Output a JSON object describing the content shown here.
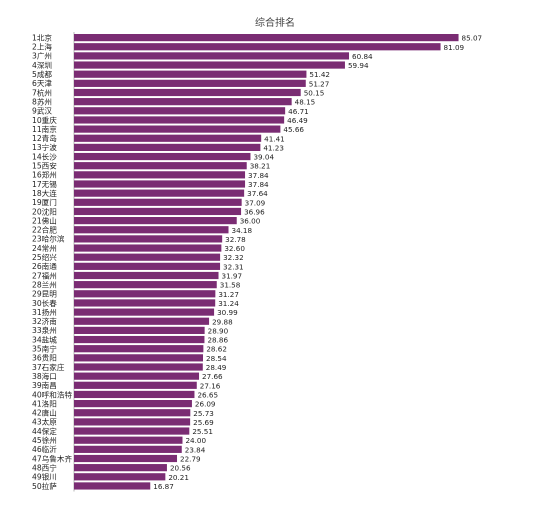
{
  "chart_data": {
    "type": "bar",
    "orientation": "horizontal",
    "title": "综合排名",
    "xlabel": "",
    "ylabel": "",
    "xlim": [
      0,
      90
    ],
    "grid": false,
    "bar_color": "#7a2c73",
    "categories": [
      "1北京",
      "2上海",
      "3广州",
      "4深圳",
      "5成都",
      "6天津",
      "7杭州",
      "8苏州",
      "9武汉",
      "10重庆",
      "11南京",
      "12青岛",
      "13宁波",
      "14长沙",
      "15西安",
      "16郑州",
      "17无锡",
      "18大连",
      "19厦门",
      "20沈阳",
      "21佛山",
      "22合肥",
      "23哈尔滨",
      "24常州",
      "25绍兴",
      "26南通",
      "27福州",
      "28兰州",
      "29昆明",
      "30长春",
      "31扬州",
      "32济南",
      "33泉州",
      "34盐城",
      "35南宁",
      "36贵阳",
      "37石家庄",
      "38海口",
      "39南昌",
      "40呼和浩特",
      "41洛阳",
      "42唐山",
      "43太原",
      "44保定",
      "45徐州",
      "46临沂",
      "47乌鲁木齐",
      "48西宁",
      "49银川",
      "50拉萨"
    ],
    "values": [
      85.07,
      81.09,
      60.84,
      59.94,
      51.42,
      51.27,
      50.15,
      48.15,
      46.71,
      46.49,
      45.66,
      41.41,
      41.23,
      39.04,
      38.21,
      37.84,
      37.84,
      37.64,
      37.09,
      36.96,
      36.0,
      34.18,
      32.78,
      32.6,
      32.32,
      32.31,
      31.97,
      31.58,
      31.27,
      31.24,
      30.99,
      29.88,
      28.9,
      28.86,
      28.62,
      28.54,
      28.49,
      27.66,
      27.16,
      26.65,
      26.09,
      25.73,
      25.69,
      25.51,
      24.0,
      23.84,
      22.79,
      20.56,
      20.21,
      16.87
    ],
    "value_labels": [
      "85.07",
      "81.09",
      "60.84",
      "59.94",
      "51.42",
      "51.27",
      "50.15",
      "48.15",
      "46.71",
      "46.49",
      "45.66",
      "41.41",
      "41.23",
      "39.04",
      "38.21",
      "37.84",
      "37.84",
      "37.64",
      "37.09",
      "36.96",
      "36.00",
      "34.18",
      "32.78",
      "32.60",
      "32.32",
      "32.31",
      "31.97",
      "31.58",
      "31.27",
      "31.24",
      "30.99",
      "29.88",
      "28.90",
      "28.86",
      "28.62",
      "28.54",
      "28.49",
      "27.66",
      "27.16",
      "26.65",
      "26.09",
      "25.73",
      "25.69",
      "25.51",
      "24.00",
      "23.84",
      "22.79",
      "20.56",
      "20.21",
      "16.87"
    ]
  }
}
